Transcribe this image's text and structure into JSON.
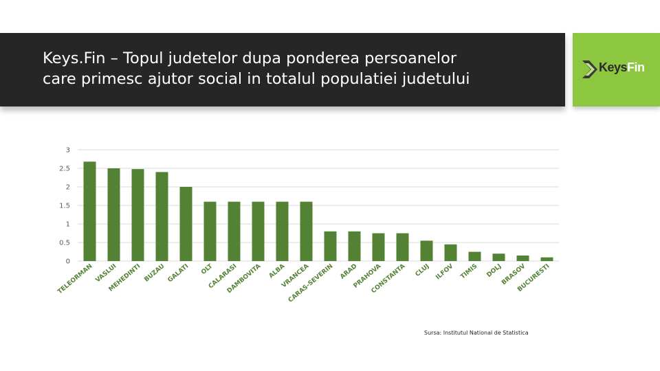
{
  "header": {
    "title": "Keys.Fin – Topul judetelor dupa ponderea persoanelor\ncare primesc ajutor social in totalul populatiei judetului"
  },
  "logo": {
    "keys": "Keys",
    "fin": "Fin",
    "icon": "chevron-icon"
  },
  "source": "Sursa: Institutul National de Statistica",
  "colors": {
    "bar": "#548235",
    "header_bg": "#262626",
    "logo_bg": "#8dc63f",
    "grid": "#d9d9d9"
  },
  "chart_data": {
    "type": "bar",
    "categories": [
      "TELEORMAN",
      "VASLUI",
      "MEHEDINTI",
      "BUZAU",
      "GALATI",
      "OLT",
      "CALARASI",
      "DAMBOVITA",
      "ALBA",
      "VRANCEA",
      "CARAS-SEVERIN",
      "ARAD",
      "PRAHOVA",
      "CONSTANTA",
      "CLUJ",
      "ILFOV",
      "TIMIS",
      "DOLJ",
      "BRASOV",
      "BUCURESTI"
    ],
    "values": [
      2.68,
      2.5,
      2.48,
      2.4,
      2.0,
      1.6,
      1.6,
      1.6,
      1.6,
      1.6,
      0.8,
      0.8,
      0.75,
      0.75,
      0.55,
      0.45,
      0.25,
      0.2,
      0.15,
      0.1
    ],
    "yticks": [
      "0",
      "0.5",
      "1",
      "1.5",
      "2",
      "2.5",
      "3"
    ],
    "ylim": [
      0,
      3
    ],
    "grid": true,
    "legend": "none"
  }
}
